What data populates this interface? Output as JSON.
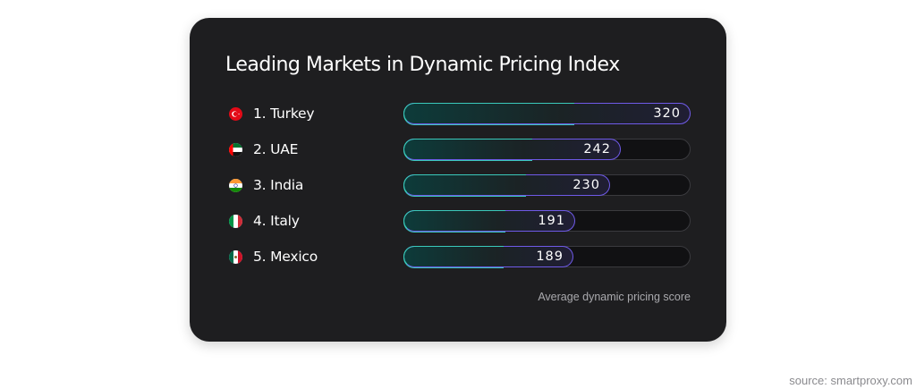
{
  "chart_data": {
    "type": "bar",
    "orientation": "horizontal",
    "title": "Leading Markets in Dynamic Pricing Index",
    "categories": [
      "1. Turkey",
      "2. UAE",
      "3. India",
      "4. Italy",
      "5. Mexico"
    ],
    "values": [
      320,
      242,
      230,
      191,
      189
    ],
    "xlabel": "Average dynamic pricing score",
    "xlim": [
      0,
      320
    ],
    "grid": false
  },
  "rows": [
    {
      "label": "1. Turkey",
      "value": "320",
      "flag": "turkey-flag-icon"
    },
    {
      "label": "2. UAE",
      "value": "242",
      "flag": "uae-flag-icon"
    },
    {
      "label": "3. India",
      "value": "230",
      "flag": "india-flag-icon"
    },
    {
      "label": "4. Italy",
      "value": "191",
      "flag": "italy-flag-icon"
    },
    {
      "label": "5. Mexico",
      "value": "189",
      "flag": "mexico-flag-icon"
    }
  ],
  "source": "source: smartproxy.com",
  "colors": {
    "card": "#1e1e20",
    "bar_border_start": "#34d1c0",
    "bar_border_end": "#6f5ae8",
    "text": "#ffffff"
  }
}
